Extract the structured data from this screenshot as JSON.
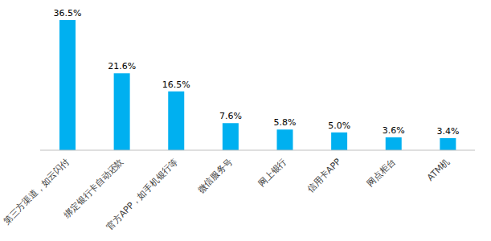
{
  "chart_data": {
    "type": "bar",
    "categories": [
      "第三方渠道，如云闪付",
      "绑定银行卡自动还款",
      "官方APP，如手机银行等",
      "微信服务号",
      "网上银行",
      "信用卡APP",
      "网点柜台",
      "ATM机"
    ],
    "values": [
      36.5,
      21.6,
      16.5,
      7.6,
      5.8,
      5.0,
      3.6,
      3.4
    ],
    "value_labels": [
      "36.5%",
      "21.6%",
      "16.5%",
      "7.6%",
      "5.8%",
      "5.0%",
      "3.6%",
      "3.4%"
    ],
    "color": "#00b0f0",
    "data_labels": true,
    "grid": false,
    "tick_labels": "x"
  }
}
